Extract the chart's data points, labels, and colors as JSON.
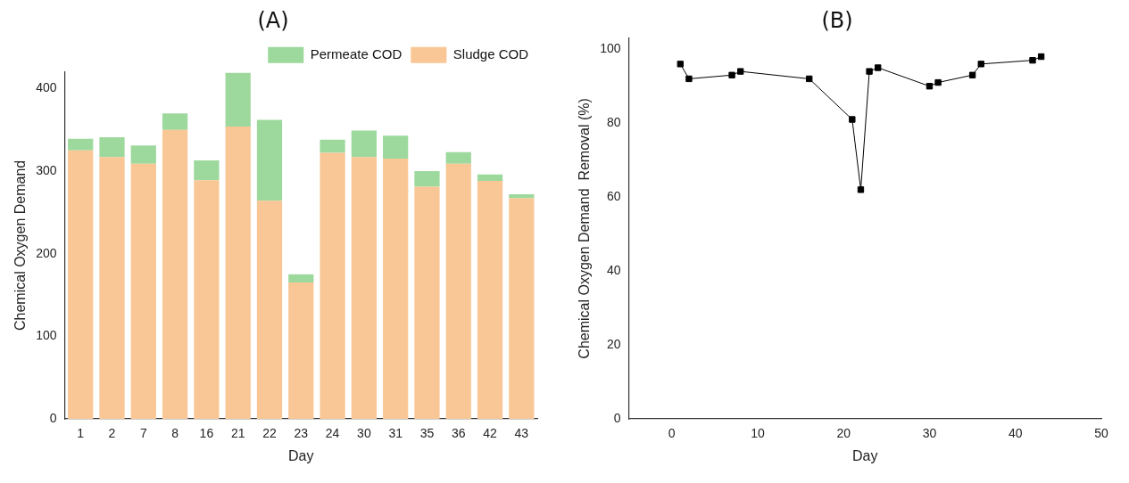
{
  "chart_data": [
    {
      "type": "bar",
      "title": "(A)",
      "xlabel": "Day",
      "ylabel": "Chemical Oxygen Demand",
      "categories": [
        "1",
        "2",
        "7",
        "8",
        "16",
        "21",
        "22",
        "23",
        "24",
        "30",
        "31",
        "35",
        "36",
        "42",
        "43"
      ],
      "stacked": true,
      "ylim": [
        0,
        420
      ],
      "yticks": [
        0,
        100,
        200,
        300,
        400
      ],
      "grid": false,
      "legend": "top right",
      "series": [
        {
          "name": "Sludge COD",
          "color": "#f9c695",
          "values": [
            325,
            317,
            309,
            350,
            289,
            354,
            264,
            165,
            322,
            317,
            315,
            281,
            309,
            288,
            267
          ]
        },
        {
          "name": "Permeate COD",
          "color": "#9dd89c",
          "values": [
            14,
            24,
            22,
            20,
            24,
            65,
            98,
            10,
            16,
            32,
            28,
            19,
            14,
            8,
            5
          ]
        }
      ]
    },
    {
      "type": "line",
      "title": "(B)",
      "xlabel": "Day",
      "ylabel": "Chemical Oxygen Demand  Removal (%)",
      "x": [
        1,
        2,
        7,
        8,
        16,
        21,
        22,
        23,
        24,
        30,
        31,
        35,
        36,
        42,
        43
      ],
      "xlim": [
        -5,
        50
      ],
      "xticks": [
        0,
        10,
        20,
        30,
        40,
        50
      ],
      "ylim": [
        0,
        103
      ],
      "yticks": [
        0,
        20,
        40,
        60,
        80,
        100
      ],
      "grid": false,
      "legend": false,
      "marker": "square",
      "line_style": "solid",
      "series": [
        {
          "color": "#000000",
          "values": [
            96,
            92,
            93,
            94,
            92,
            81,
            62,
            94,
            95,
            90,
            91,
            93,
            96,
            97,
            98
          ]
        }
      ]
    }
  ]
}
